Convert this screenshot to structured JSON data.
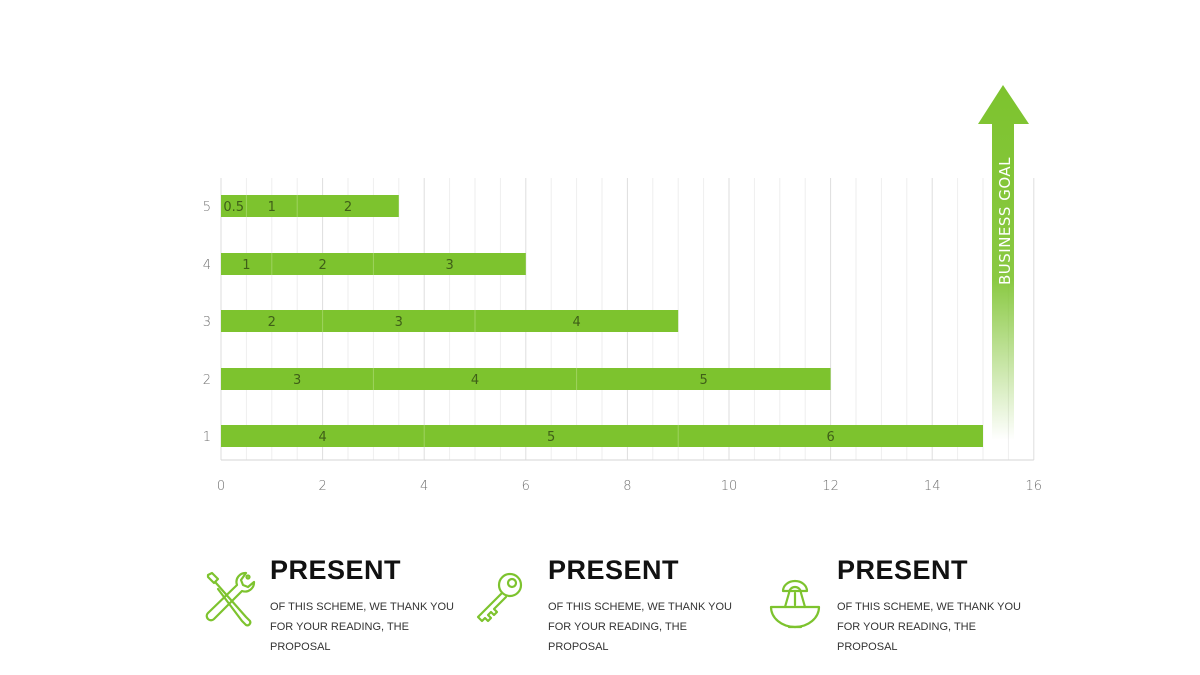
{
  "chart_data": {
    "type": "bar",
    "orientation": "horizontal",
    "stacked": true,
    "categories": [
      "1",
      "2",
      "3",
      "4",
      "5"
    ],
    "series_segments": [
      [
        4,
        5,
        6
      ],
      [
        3,
        4,
        5
      ],
      [
        2,
        3,
        4
      ],
      [
        1,
        2,
        3
      ],
      [
        0.5,
        1,
        2
      ]
    ],
    "segment_labels": [
      [
        "4",
        "5",
        "6"
      ],
      [
        "3",
        "4",
        "5"
      ],
      [
        "2",
        "3",
        "4"
      ],
      [
        "1",
        "2",
        "3"
      ],
      [
        "0.5",
        "1",
        "2"
      ]
    ],
    "x_ticks": [
      "0",
      "2",
      "4",
      "6",
      "8",
      "10",
      "12",
      "14",
      "16"
    ],
    "xlim": [
      0,
      16
    ],
    "grid": true,
    "bar_color": "#7dc32e",
    "title": "",
    "xlabel": "",
    "ylabel": ""
  },
  "goal_arrow": {
    "label": "BUSINESS GOAL",
    "color": "#7dc32e"
  },
  "features": [
    {
      "icon": "wrench-screwdriver-icon",
      "heading": "PRESENT",
      "lines": [
        "OF THIS SCHEME, WE THANK YOU",
        "FOR YOUR READING, THE",
        "PROPOSAL"
      ]
    },
    {
      "icon": "key-icon",
      "heading": "PRESENT",
      "lines": [
        "OF THIS SCHEME, WE THANK YOU",
        "FOR YOUR READING, THE",
        "PROPOSAL"
      ]
    },
    {
      "icon": "juicer-icon",
      "heading": "PRESENT",
      "lines": [
        "OF THIS SCHEME, WE THANK YOU",
        "FOR YOUR READING, THE",
        "PROPOSAL"
      ]
    }
  ],
  "colors": {
    "accent": "#7dc32e",
    "text_dark": "#111111",
    "grid": "#e6e6e6"
  }
}
